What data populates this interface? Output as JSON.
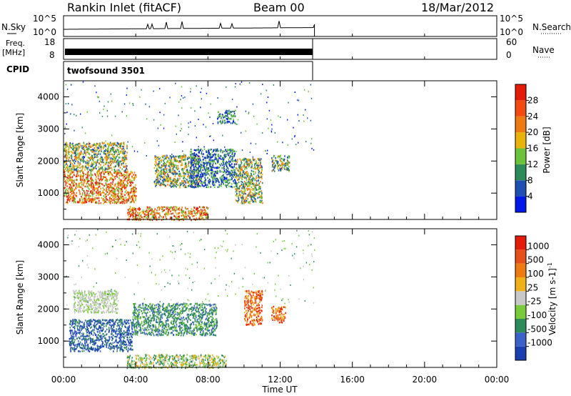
{
  "header": {
    "station": "Rankin Inlet (fitACF)",
    "beam": "Beam 00",
    "date": "18/Mar/2012"
  },
  "noise_panel": {
    "left_label": "N.Sky",
    "left_ticks": [
      "10^5",
      "10^0"
    ],
    "right_label": "N.Search",
    "right_ticks": [
      "10^5",
      "10^0"
    ]
  },
  "freq_panel": {
    "left_label_1": "Freq.",
    "left_label_2": "[MHz]",
    "left_ticks": [
      "18",
      "8"
    ],
    "right_label": "Nave",
    "right_ticks": [
      "60",
      "0"
    ]
  },
  "cpid_panel": {
    "label": "CPID",
    "program": "twofsound 3501"
  },
  "chart_data": [
    {
      "type": "heatmap",
      "quantity": "Power",
      "ylabel": "Slant Range [km]",
      "ylim": [
        180,
        4500
      ],
      "yticks": [
        "1000",
        "2000",
        "3000",
        "4000"
      ],
      "colorbar_label": "Power [dB]",
      "colorbar_ticks": [
        "4",
        "8",
        "12",
        "16",
        "20",
        "24",
        "28"
      ],
      "colorbar_colors": [
        "#0019e8",
        "#1f4fb0",
        "#2e8a5a",
        "#6cc23a",
        "#e8b40a",
        "#ee7a12",
        "#f24a10",
        "#e41a0a"
      ],
      "regions": [
        {
          "x": [
            0.0,
            4.0
          ],
          "y": [
            700,
            1700
          ],
          "level": "high"
        },
        {
          "x": [
            0.0,
            3.5
          ],
          "y": [
            1700,
            2600
          ],
          "level": "mid"
        },
        {
          "x": [
            3.5,
            8.0
          ],
          "y": [
            180,
            600
          ],
          "level": "high"
        },
        {
          "x": [
            5.0,
            7.5
          ],
          "y": [
            1200,
            2200
          ],
          "level": "mid"
        },
        {
          "x": [
            7.0,
            9.5
          ],
          "y": [
            1200,
            2400
          ],
          "level": "low"
        },
        {
          "x": [
            9.5,
            11.0
          ],
          "y": [
            700,
            2100
          ],
          "level": "mid"
        },
        {
          "x": [
            11.5,
            12.5
          ],
          "y": [
            1700,
            2200
          ],
          "level": "mid"
        },
        {
          "x": [
            8.5,
            9.5
          ],
          "y": [
            3200,
            3600
          ],
          "level": "low"
        }
      ]
    },
    {
      "type": "heatmap",
      "quantity": "Velocity",
      "ylabel": "Slant Range [km]",
      "ylim": [
        180,
        4500
      ],
      "yticks": [
        "1000",
        "2000",
        "3000",
        "4000"
      ],
      "colorbar_label": "Velocity [m s-1]",
      "colorbar_ticks": [
        "1000",
        "500",
        "100",
        "25",
        "-25",
        "-100",
        "-500",
        "-1000"
      ],
      "colorbar_colors": [
        "#1a3fae",
        "#3a62c8",
        "#2e8a5a",
        "#7acb3c",
        "#c8c8c8",
        "#f0b018",
        "#ee7a12",
        "#e8501a",
        "#e41a0a"
      ],
      "regions": [
        {
          "x": [
            0.3,
            3.8
          ],
          "y": [
            700,
            1700
          ],
          "level": "toward-fast"
        },
        {
          "x": [
            0.5,
            3.0
          ],
          "y": [
            1900,
            2600
          ],
          "level": "near-zero"
        },
        {
          "x": [
            3.8,
            8.5
          ],
          "y": [
            1200,
            2200
          ],
          "level": "toward-slow"
        },
        {
          "x": [
            3.5,
            9.0
          ],
          "y": [
            180,
            600
          ],
          "level": "mixed"
        },
        {
          "x": [
            10.0,
            11.0
          ],
          "y": [
            1500,
            2600
          ],
          "level": "away"
        },
        {
          "x": [
            11.5,
            12.3
          ],
          "y": [
            1600,
            2100
          ],
          "level": "away"
        }
      ]
    }
  ],
  "time_axis": {
    "label": "Time UT",
    "ticks": [
      "00:00",
      "04:00",
      "08:00",
      "12:00",
      "16:00",
      "20:00",
      "00:00"
    ],
    "data_end_hour": 13.9
  },
  "velocity_cb_super": "-1"
}
